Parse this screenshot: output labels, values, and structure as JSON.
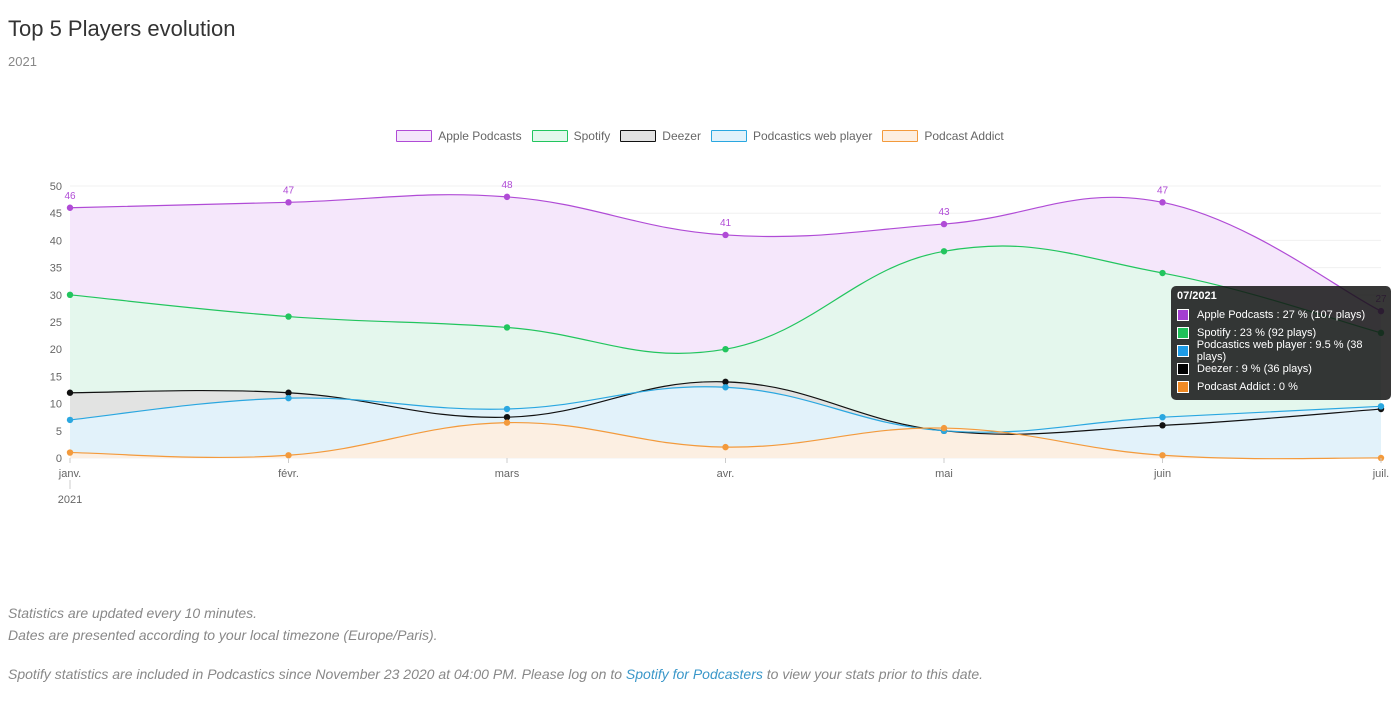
{
  "header": {
    "title": "Top 5 Players evolution",
    "subtitle": "2021"
  },
  "chart_data": {
    "type": "area",
    "categories": [
      "janv.",
      "févr.",
      "mars",
      "avr.",
      "mai",
      "juin",
      "juil."
    ],
    "x_sublabel": "2021",
    "ylim": [
      0,
      50
    ],
    "yticks": [
      0,
      5,
      10,
      15,
      20,
      25,
      30,
      35,
      40,
      45,
      50
    ],
    "grid": true,
    "legend_position": "top-center",
    "series": [
      {
        "name": "Apple Podcasts",
        "color": "#b04bd6",
        "fill": "#f4e6fb",
        "values": [
          46,
          47,
          48,
          41,
          43,
          47,
          27
        ],
        "data_labels": true
      },
      {
        "name": "Spotify",
        "color": "#22c55e",
        "fill": "#e3f8ec",
        "values": [
          30,
          26,
          24,
          20,
          38,
          34,
          23
        ]
      },
      {
        "name": "Deezer",
        "color": "#111111",
        "fill": "#e2e2e2",
        "values": [
          12,
          12,
          7.5,
          14,
          5,
          6,
          9
        ]
      },
      {
        "name": "Podcastics web player",
        "color": "#2aa7e0",
        "fill": "#e1f2fb",
        "values": [
          7,
          11,
          9,
          13,
          5,
          7.5,
          9.5
        ]
      },
      {
        "name": "Podcast Addict",
        "color": "#f39a3c",
        "fill": "#fdeee0",
        "values": [
          1,
          0.5,
          6.5,
          2,
          5.5,
          0.5,
          0
        ]
      }
    ]
  },
  "tooltip": {
    "title": "07/2021",
    "rows": [
      {
        "color": "#a43ed1",
        "text": "Apple Podcasts : 27 % (107 plays)"
      },
      {
        "color": "#1fc15a",
        "text": "Spotify : 23 % (92 plays)"
      },
      {
        "color": "#1e9be6",
        "text": "Podcastics web player : 9.5 % (38 plays)"
      },
      {
        "color": "#000000",
        "text": "Deezer : 9 % (36 plays)"
      },
      {
        "color": "#f08a24",
        "text": "Podcast Addict : 0 %"
      }
    ]
  },
  "footer": {
    "line1": "Statistics are updated every 10 minutes.",
    "line2": "Dates are presented according to your local timezone (Europe/Paris).",
    "line3_before": "Spotify statistics are included in Podcastics since November 23 2020 at 04:00 PM. Please log on to ",
    "line3_link": "Spotify for Podcasters",
    "line3_after": " to view your stats prior to this date."
  }
}
